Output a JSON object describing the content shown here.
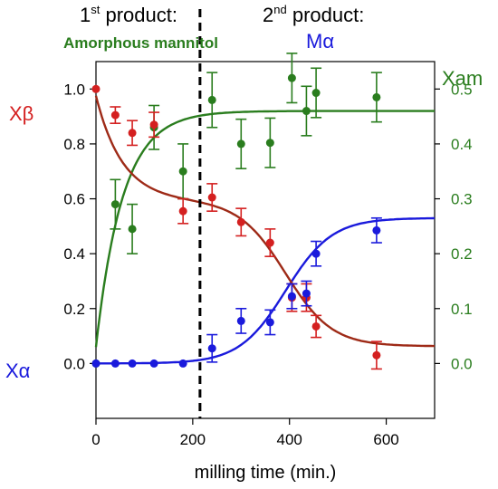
{
  "chart_data": {
    "type": "scatter",
    "xlabel": "milling time (min.)",
    "xlim": [
      0,
      700
    ],
    "x_ticks": [
      0,
      200,
      400,
      600
    ],
    "left_axis": {
      "ylim": [
        -0.2,
        1.1
      ],
      "ticks": [
        "0.0",
        "0.2",
        "0.4",
        "0.6",
        "0.8",
        "1.0"
      ],
      "tick_values": [
        0,
        0.2,
        0.4,
        0.6,
        0.8,
        1.0
      ]
    },
    "right_axis": {
      "label": "Xam",
      "ylim": [
        -0.1,
        0.55
      ],
      "ticks": [
        "0.0",
        "0.1",
        "0.2",
        "0.3",
        "0.4",
        "0.5"
      ],
      "tick_values": [
        0,
        0.1,
        0.2,
        0.3,
        0.4,
        0.5
      ],
      "color": "#2a7d1e"
    },
    "vline_x": 215,
    "annotations": {
      "first_head": "1",
      "first_sup": "st",
      "first_rest": " product:",
      "first_sub": "Amorphous mannitol",
      "second_head": "2",
      "second_sup": "nd",
      "second_rest": " product:",
      "second_sub": "Mα"
    },
    "series": [
      {
        "name": "Xβ",
        "axis": "left",
        "color": "#d42020",
        "line_color": "#9e2a17",
        "points": [
          {
            "x": 0,
            "y": 1.0,
            "err": 0
          },
          {
            "x": 40,
            "y": 0.905,
            "err": 0.03
          },
          {
            "x": 75,
            "y": 0.84,
            "err": 0.045
          },
          {
            "x": 120,
            "y": 0.87,
            "err": 0.045
          },
          {
            "x": 180,
            "y": 0.555,
            "err": 0.045
          },
          {
            "x": 240,
            "y": 0.605,
            "err": 0.05
          },
          {
            "x": 300,
            "y": 0.515,
            "err": 0.05
          },
          {
            "x": 360,
            "y": 0.44,
            "err": 0.05
          },
          {
            "x": 405,
            "y": 0.24,
            "err": 0.05
          },
          {
            "x": 435,
            "y": 0.24,
            "err": 0.05
          },
          {
            "x": 455,
            "y": 0.135,
            "err": 0.04
          },
          {
            "x": 580,
            "y": 0.03,
            "err": 0.05
          }
        ]
      },
      {
        "name": "Xα",
        "axis": "left",
        "color": "#1a1adc",
        "line_color": "#1a1adc",
        "points": [
          {
            "x": 0,
            "y": 0.0,
            "err": 0
          },
          {
            "x": 40,
            "y": 0.0,
            "err": 0
          },
          {
            "x": 75,
            "y": 0.0,
            "err": 0
          },
          {
            "x": 120,
            "y": 0.0,
            "err": 0
          },
          {
            "x": 180,
            "y": 0.0,
            "err": 0
          },
          {
            "x": 240,
            "y": 0.055,
            "err": 0.05
          },
          {
            "x": 300,
            "y": 0.155,
            "err": 0.045
          },
          {
            "x": 360,
            "y": 0.15,
            "err": 0.045
          },
          {
            "x": 405,
            "y": 0.245,
            "err": 0.045
          },
          {
            "x": 435,
            "y": 0.255,
            "err": 0.045
          },
          {
            "x": 455,
            "y": 0.4,
            "err": 0.045
          },
          {
            "x": 580,
            "y": 0.485,
            "err": 0.045
          }
        ]
      },
      {
        "name": "Xam",
        "axis": "right",
        "color": "#2a7d1e",
        "line_color": "#2a7d1e",
        "points": [
          {
            "x": 0,
            "y": 0.0,
            "err": 0
          },
          {
            "x": 40,
            "y": 0.29,
            "err": 0.045
          },
          {
            "x": 75,
            "y": 0.245,
            "err": 0.045
          },
          {
            "x": 120,
            "y": 0.43,
            "err": 0.04
          },
          {
            "x": 180,
            "y": 0.35,
            "err": 0.05
          },
          {
            "x": 240,
            "y": 0.48,
            "err": 0.05
          },
          {
            "x": 300,
            "y": 0.4,
            "err": 0.045
          },
          {
            "x": 360,
            "y": 0.402,
            "err": 0.045
          },
          {
            "x": 405,
            "y": 0.52,
            "err": 0.045
          },
          {
            "x": 435,
            "y": 0.46,
            "err": 0.045
          },
          {
            "x": 455,
            "y": 0.493,
            "err": 0.045
          },
          {
            "x": 580,
            "y": 0.485,
            "err": 0.045
          }
        ]
      }
    ]
  }
}
